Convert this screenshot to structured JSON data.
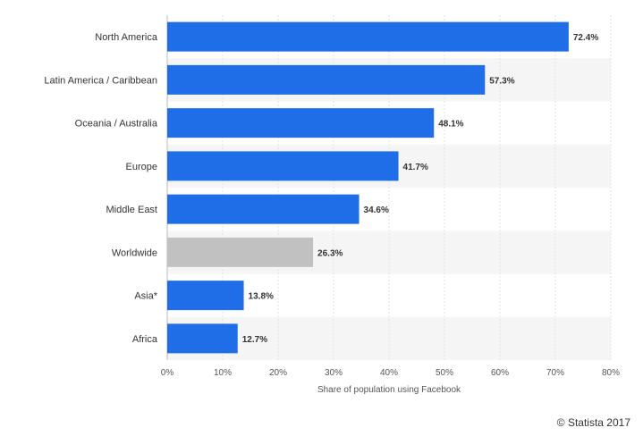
{
  "chart_data": {
    "type": "bar",
    "orientation": "horizontal",
    "categories": [
      "North America",
      "Latin America / Caribbean",
      "Oceania / Australia",
      "Europe",
      "Middle East",
      "Worldwide",
      "Asia*",
      "Africa"
    ],
    "values": [
      72.4,
      57.3,
      48.1,
      41.7,
      34.6,
      26.3,
      13.8,
      12.7
    ],
    "value_labels": [
      "72.4%",
      "57.3%",
      "48.1%",
      "41.7%",
      "34.6%",
      "26.3%",
      "13.8%",
      "12.7%"
    ],
    "bar_colors": [
      "#1f6ee8",
      "#1f6ee8",
      "#1f6ee8",
      "#1f6ee8",
      "#1f6ee8",
      "#c1c1c1",
      "#1f6ee8",
      "#1f6ee8"
    ],
    "xlabel": "Share of population using Facebook",
    "xlim": [
      0,
      80
    ],
    "xticks": [
      0,
      10,
      20,
      30,
      40,
      50,
      60,
      70,
      80
    ],
    "xtick_labels": [
      "0%",
      "10%",
      "20%",
      "30%",
      "40%",
      "50%",
      "60%",
      "70%",
      "80%"
    ],
    "grid": true,
    "alternating_row_bands": true
  },
  "credit": "© Statista 2017"
}
